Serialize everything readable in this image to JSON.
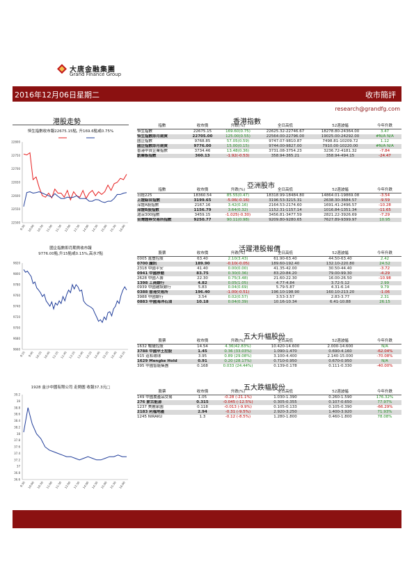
{
  "company": {
    "name_cn": "大唐金融集團",
    "name_en": "Grand Finance Group"
  },
  "banner": {
    "date": "2016年12月06日星期二",
    "category": "收市簡評"
  },
  "email": "research@grandfg.com",
  "sections": {
    "hk_trend": "港股走勢",
    "hk_index": "香港指數",
    "asia": "亞洲股市",
    "active": "活躍港股報價",
    "gainers": "五大升幅股份",
    "losers": "五大跌幅股份"
  },
  "charts": {
    "hsi": {
      "caption": "恒生指數收市報22675.15點, 升169.6點或0.75%"
    },
    "hscei": {
      "caption_line1": "國企指數即月期貨收市報",
      "caption_line2": "9776.00點,升15點或0.15%,高水7點"
    },
    "stock": {
      "caption": "1928 金沙中國有限公司 走勢圖  收報37.3元□"
    }
  },
  "chart_data": [
    {
      "type": "line",
      "ylim": [
        22500,
        22800
      ],
      "yticks": [
        "22500",
        "22550",
        "22600",
        "22650",
        "22700",
        "22750",
        "22800"
      ],
      "xticks": [
        "9:30",
        "10:00",
        "10:30",
        "11:00",
        "11:30",
        "12:00",
        "13:30",
        "14:00",
        "14:30",
        "15:00",
        "15:30",
        "16:00"
      ],
      "series": [
        {
          "color": "#e61c1c",
          "values": [
            22755,
            22752,
            22760,
            22660,
            22670,
            22630,
            22600,
            22595,
            22610,
            22592,
            22625,
            22610,
            22610,
            22595,
            22620,
            22585,
            22615,
            22600,
            22595,
            22620,
            22590,
            22610,
            22620,
            22600,
            22615,
            22605,
            22615,
            22640,
            22620,
            22645,
            22650,
            22665,
            22660,
            22680
          ]
        },
        {
          "color": "#1f3c99",
          "values": [
            22560,
            22612,
            22615,
            22610,
            22612,
            22615,
            22610,
            22605,
            22600,
            22595,
            22608,
            22598,
            22590,
            22590,
            22595,
            22593,
            22595,
            22600,
            22590,
            22590,
            22590,
            22580,
            22580,
            22586,
            22585,
            22578,
            22575,
            22580,
            22580,
            22590,
            22605,
            22605,
            22610,
            22612
          ]
        }
      ]
    },
    {
      "type": "line",
      "ylim": [
        9660,
        9820
      ],
      "yticks": [
        "9660",
        "9680",
        "9700",
        "9720",
        "9740",
        "9760",
        "9780",
        "9800",
        "9820"
      ],
      "xticks": [
        "9:15",
        "9:45",
        "10:15",
        "10:45",
        "11:15",
        "11:45",
        "13:15",
        "13:45",
        "14:15",
        "14:45",
        "15:15",
        "15:45",
        "16:15"
      ],
      "series": [
        {
          "color": "#1f3c99",
          "values": [
            9808,
            9803,
            9805,
            9800,
            9795,
            9782,
            9785,
            9774,
            9770,
            9765,
            9758,
            9762,
            9750,
            9745,
            9740,
            9748,
            9735,
            9746,
            9742,
            9750,
            9745,
            9758,
            9750,
            9762,
            9770,
            9765,
            9780,
            9772,
            9780,
            9776,
            9768,
            9770,
            9750,
            9745,
            9742,
            9740,
            9738,
            9735,
            9727,
            9720,
            9712,
            9715,
            9710,
            9720,
            9715,
            9728,
            9730,
            9722,
            9735,
            9740,
            9750,
            9745,
            9760,
            9770,
            9776,
            9770
          ]
        }
      ]
    },
    {
      "type": "line",
      "ylim": [
        36.6,
        39.2
      ],
      "yticks": [
        "36.6",
        "36.8",
        "37",
        "37.2",
        "37.4",
        "37.6",
        "37.8",
        "38",
        "38.2",
        "38.4",
        "38.6",
        "38.8",
        "39",
        "39.2"
      ],
      "xticks": [
        "9:30",
        "10:00",
        "10:30",
        "11:00",
        "11:30",
        "12:00",
        "13:30",
        "14:00",
        "14:30",
        "15:00",
        "15:30",
        "16:00"
      ],
      "series": [
        {
          "color": "#1f3c99",
          "values": [
            38.05,
            38.8,
            38.3,
            38.0,
            37.85,
            37.6,
            37.5,
            37.45,
            37.4,
            37.35,
            37.3,
            37.3,
            37.25,
            37.2,
            37.25,
            37.3,
            37.25,
            37.2,
            37.2,
            37.25,
            37.3,
            37.3,
            37.35,
            37.3,
            37.3
          ]
        }
      ]
    }
  ],
  "hk_table": {
    "headers": [
      "指數",
      "收市價",
      "升跌(%)",
      "全日高低",
      "52週波幅",
      "今年升跌"
    ],
    "rows": [
      {
        "name": "恒生指數",
        "price": "22675.15",
        "chg": "169.60(0.75)",
        "hl": "22625.32-22746.67",
        "w52": "18278.80-24364.00",
        "ytd": "3.47",
        "chg_c": "g",
        "ytd_c": "g",
        "shade": false
      },
      {
        "name": "恒生指數即月期貨",
        "price": "22705.00",
        "chg": "125.00(0.55)",
        "hl": "22564.00-22796.00",
        "w52": "19025.00-24292.00",
        "ytd": "#N/A N/A",
        "chg_c": "g",
        "ytd_c": "g",
        "shade": true
      },
      {
        "name": "國企指數",
        "price": "9768.85",
        "chg": "57.05(0.59)",
        "hl": "9747.07-9810.87",
        "w52": "7498.81-10209.72",
        "ytd": "1.12",
        "chg_c": "g",
        "ytd_c": "g",
        "shade": false
      },
      {
        "name": "國企指數即月期貨",
        "price": "9776.00",
        "chg": "15.00(0.15)",
        "hl": "9744.00-9827.00",
        "w52": "7910.00-10220.00",
        "ytd": "#N/A N/A",
        "chg_c": "g",
        "ytd_c": "g",
        "shade": true
      },
      {
        "name": "香港中資企業指數",
        "price": "3734.46",
        "chg": "13.48(0.36)",
        "hl": "3731.08-3754.23",
        "w52": "3236.72-4181.32",
        "ytd": "-7.84",
        "chg_c": "g",
        "ytd_c": "r",
        "shade": false
      },
      {
        "name": "創業板指數",
        "price": "360.13",
        "chg": "-1.92(-0.53)",
        "hl": "358.94-365.21",
        "w52": "358.94-494.15",
        "ytd": "-24.47",
        "chg_c": "r",
        "ytd_c": "r",
        "shade": true
      }
    ]
  },
  "asia_table": {
    "headers": [
      "指數",
      "收市價",
      "升跌(%)",
      "全日高低",
      "52週波幅",
      "今年升跌"
    ],
    "rows": [
      {
        "name": "日經225",
        "price": "18360.54",
        "chg": "85.55(0.47)",
        "hl": "18318.99-18484.80",
        "w52": "14864.01-19869.08",
        "ytd": "-3.54",
        "chg_c": "g",
        "ytd_c": "r",
        "shade": false
      },
      {
        "name": "上證綜合指數",
        "price": "3199.65",
        "chg": "-5.06(-0.16)",
        "hl": "3196.53-3215.31",
        "w52": "2638.30-3684.57",
        "ytd": "-9.59",
        "chg_c": "r",
        "ytd_c": "r",
        "shade": true
      },
      {
        "name": "深證A股指數",
        "price": "2167.16",
        "chg": "3.42(0.16)",
        "hl": "2164.53-2174.60",
        "w52": "1691.41-2496.57",
        "ytd": "-10.28",
        "chg_c": "g",
        "ytd_c": "r",
        "shade": false
      },
      {
        "name": "深證B股指數",
        "price": "1156.79",
        "chg": "3.64(0.32)",
        "hl": "1152.31-1157.14",
        "w52": "1016.84-1351.34",
        "ytd": "-11.65",
        "chg_c": "g",
        "ytd_c": "r",
        "shade": true
      },
      {
        "name": "滬深300指數",
        "price": "3459.15",
        "chg": "-1.025(-0.30)",
        "hl": "3456.81-3477.59",
        "w52": "2821.22-3926.69",
        "ytd": "-7.29",
        "chg_c": "r",
        "ytd_c": "r",
        "shade": false
      },
      {
        "name": "台灣證券交易所指數",
        "price": "9250.77",
        "chg": "90.11(0.98)",
        "hl": "9209.80-9280.65",
        "w52": "7627.89-9399.97",
        "ytd": "10.95",
        "chg_c": "g",
        "ytd_c": "g",
        "shade": true
      }
    ]
  },
  "active_table": {
    "headers": [
      "股票",
      "收市價",
      "升跌(%)",
      "全日高低",
      "52週波幅",
      "今年升跌"
    ],
    "rows": [
      {
        "name": "0005 滙豐控股",
        "price": "63.40",
        "chg": "2.10(3.43)",
        "hl": "61.90-63.40",
        "w52": "44.50-63.40",
        "ytd": "2.42",
        "chg_c": "g",
        "ytd_c": "g",
        "shade": false
      },
      {
        "name": "0700 騰訊",
        "price": "189.90",
        "chg": "-0.10(-0.05)",
        "hl": "189.60-192.40",
        "w52": "132.10-220.80",
        "ytd": "24.52",
        "chg_c": "r",
        "ytd_c": "g",
        "shade": true
      },
      {
        "name": "2318 中國平安",
        "price": "41.40",
        "chg": "0.00(0.00)",
        "hl": "41.35-42.00",
        "w52": "30.50-44.40",
        "ytd": "-3.72",
        "chg_c": "g",
        "ytd_c": "r",
        "shade": false
      },
      {
        "name": "0941 中國移動",
        "price": "83.75",
        "chg": "0.30(0.36)",
        "hl": "83.20-84.20",
        "w52": "79.00-99.30",
        "ytd": "-4.29",
        "chg_c": "g",
        "ytd_c": "r",
        "shade": true
      },
      {
        "name": "2628 中國人壽",
        "price": "22.30",
        "chg": "0.75(3.48)",
        "hl": "21.60-22.30",
        "w52": "16.00-26.50",
        "ytd": "-10.98",
        "chg_c": "g",
        "ytd_c": "r",
        "shade": false
      },
      {
        "name": "1398 工商銀行",
        "price": "4.82",
        "chg": "0.05(1.05)",
        "hl": "4.77-4.84",
        "w52": "3.72-5.12",
        "ytd": "2.99",
        "chg_c": "g",
        "ytd_c": "g",
        "shade": true
      },
      {
        "name": "0939 中國建設銀行",
        "price": "5.83",
        "chg": "0.04(0.69)",
        "hl": "5.79-5.87",
        "w52": "4.31-6.14",
        "ytd": "9.79",
        "chg_c": "g",
        "ytd_c": "g",
        "shade": false
      },
      {
        "name": "0388 香港交易所",
        "price": "196.40",
        "chg": "-1.00(-0.51)",
        "hl": "196.10-198.90",
        "w52": "160.10-213.20",
        "ytd": "-1.06",
        "chg_c": "r",
        "ytd_c": "r",
        "shade": true
      },
      {
        "name": "3988 中國銀行",
        "price": "3.54",
        "chg": "0.02(0.57)",
        "hl": "3.53-3.57",
        "w52": "2.83-3.77",
        "ytd": "2.31",
        "chg_c": "g",
        "ytd_c": "g",
        "shade": false
      },
      {
        "name": "0883 中國海洋石油",
        "price": "10.18",
        "chg": "0.04(0.39)",
        "hl": "10.16-10.34",
        "w52": "6.41-10.88",
        "ytd": "26.15",
        "chg_c": "g",
        "ytd_c": "g",
        "shade": true
      }
    ]
  },
  "gainers_table": {
    "headers": [
      "股票",
      "收市價",
      "升跌(%)",
      "全日高低",
      "52週波幅",
      "今年升跌"
    ],
    "rows": [
      {
        "name": "1632 暢捷控股",
        "price": "14.54",
        "chg": "4.36(42.83%)",
        "hl": "10.420-14.600",
        "w52": "2.000-14.600",
        "ytd": "N/A",
        "chg_c": "g",
        "ytd_c": "g",
        "shade": false
      },
      {
        "name": "3788 中國罕王控股",
        "price": "1.45",
        "chg": "0.36 (33.03%)",
        "hl": "1.090-1.470",
        "w52": "0.690-4.160",
        "ytd": "-62.04%",
        "chg_c": "g",
        "ytd_c": "r",
        "shade": true
      },
      {
        "name": "915 道和環球",
        "price": "3.95",
        "chg": "0.89 (29.08%)",
        "hl": "3.100-4.400",
        "w52": "2.140-15.000",
        "ytd": "-70.08%",
        "chg_c": "g",
        "ytd_c": "r",
        "shade": false
      },
      {
        "name": "1629 Mengke Hold",
        "price": "0.91",
        "chg": "0.20 (28.17%)",
        "hl": "0.710-0.950",
        "w52": "0.670-0.950",
        "ytd": "N/A",
        "chg_c": "g",
        "ytd_c": "g",
        "shade": true
      },
      {
        "name": "395 中國智能集團",
        "price": "0.168",
        "chg": "0.033 (24.44%)",
        "hl": "0.139-0.178",
        "w52": "0.111-0.330",
        "ytd": "-40.00%",
        "chg_c": "g",
        "ytd_c": "r",
        "shade": false
      }
    ]
  },
  "losers_table": {
    "headers": [
      "股票",
      "收市價",
      "升跌(%)",
      "全日高低",
      "52週波幅",
      "今年升跌"
    ],
    "rows": [
      {
        "name": "149 中國農產品交易",
        "price": "1.05",
        "chg": "-0.28 (-21.1%)",
        "hl": "1.030-1.390",
        "w52": "0.260-1.590",
        "ytd": "176.32%",
        "chg_c": "r",
        "ytd_c": "g",
        "shade": false
      },
      {
        "name": "276 蒙古能源",
        "price": "0.315",
        "chg": "-0.045 (-12.5%)",
        "hl": "0.305-0.355",
        "w52": "0.107-0.650",
        "ytd": "77.97%",
        "chg_c": "r",
        "ytd_c": "g",
        "shade": true
      },
      {
        "name": "1237 美麗家園",
        "price": "0.118",
        "chg": "-0.013 (-9.9%)",
        "hl": "0.105-0.133",
        "w52": "0.105-0.390",
        "ytd": "-66.29%",
        "chg_c": "r",
        "ytd_c": "r",
        "shade": false
      },
      {
        "name": "2183 利福地產",
        "price": "2.94",
        "chg": "-0.31 (-9.5%)",
        "hl": "2.920-3.250",
        "w52": "1.400-3.920",
        "ytd": "71.93%",
        "chg_c": "r",
        "ytd_c": "g",
        "shade": true
      },
      {
        "name": "1245 NIRAKU",
        "price": "1.3",
        "chg": "-0.12 (-8.5%)",
        "hl": "1.280-1.800",
        "w52": "0.460-1.800",
        "ytd": "78.08%",
        "chg_c": "r",
        "ytd_c": "g",
        "shade": false
      }
    ]
  }
}
